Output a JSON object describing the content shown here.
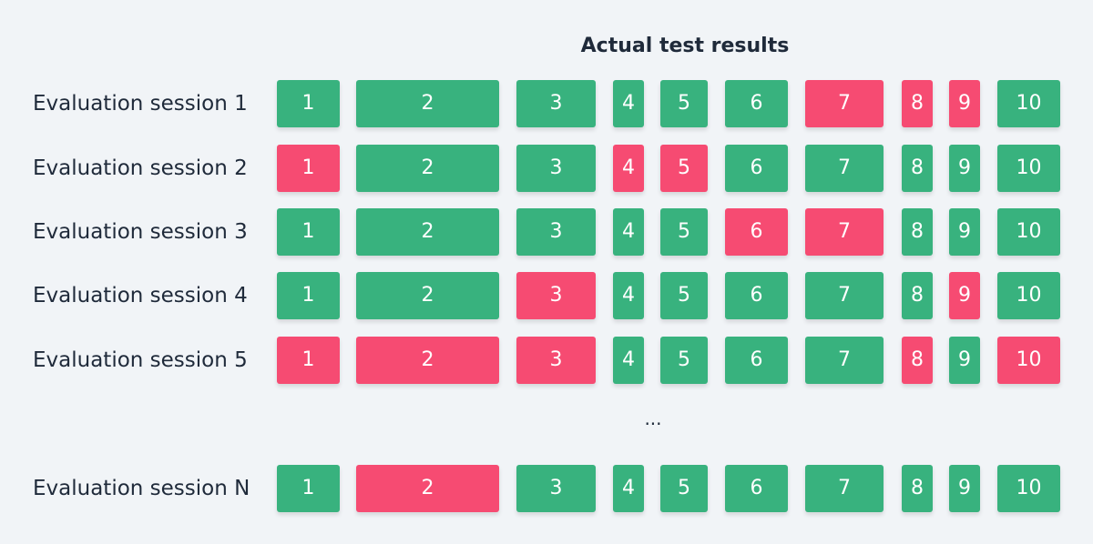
{
  "title": "Actual test results",
  "ellipsis": "...",
  "colors": {
    "pass": "#38b27e",
    "fail": "#f64b72"
  },
  "tests": [
    "1",
    "2",
    "3",
    "4",
    "5",
    "6",
    "7",
    "8",
    "9",
    "10"
  ],
  "rows": [
    {
      "label": "Evaluation session 1",
      "results": [
        "pass",
        "pass",
        "pass",
        "pass",
        "pass",
        "pass",
        "fail",
        "fail",
        "fail",
        "pass"
      ]
    },
    {
      "label": "Evaluation session 2",
      "results": [
        "fail",
        "pass",
        "pass",
        "fail",
        "fail",
        "pass",
        "pass",
        "pass",
        "pass",
        "pass"
      ]
    },
    {
      "label": "Evaluation session 3",
      "results": [
        "pass",
        "pass",
        "pass",
        "pass",
        "pass",
        "fail",
        "fail",
        "pass",
        "pass",
        "pass"
      ]
    },
    {
      "label": "Evaluation session 4",
      "results": [
        "pass",
        "pass",
        "fail",
        "pass",
        "pass",
        "pass",
        "pass",
        "pass",
        "fail",
        "pass"
      ]
    },
    {
      "label": "Evaluation session 5",
      "results": [
        "fail",
        "fail",
        "fail",
        "pass",
        "pass",
        "pass",
        "pass",
        "fail",
        "pass",
        "fail"
      ]
    },
    {
      "label": "Evaluation session N",
      "results": [
        "pass",
        "fail",
        "pass",
        "pass",
        "pass",
        "pass",
        "pass",
        "pass",
        "pass",
        "pass"
      ]
    }
  ]
}
